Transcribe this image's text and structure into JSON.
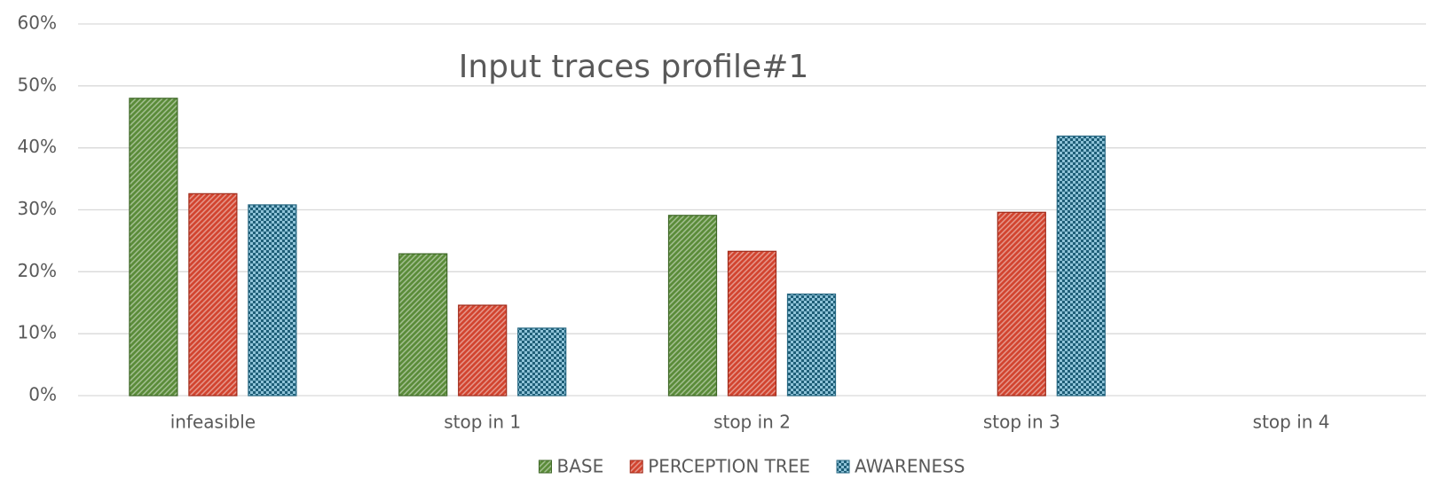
{
  "chart_data": {
    "type": "bar",
    "title": "Input traces profile#1",
    "categories": [
      "infeasible",
      "stop in 1",
      "stop in 2",
      "stop in 3",
      "stop in 4"
    ],
    "series": [
      {
        "name": "BASE",
        "color": "#5b8c3a",
        "values": [
          48,
          22.9,
          29.1,
          0,
          0
        ]
      },
      {
        "name": "PERCEPTION TREE",
        "color": "#d24530",
        "values": [
          32.6,
          14.6,
          23.3,
          29.6,
          0
        ]
      },
      {
        "name": "AWARENESS",
        "color": "#8fc3d8",
        "values": [
          30.8,
          10.9,
          16.4,
          41.9,
          0
        ]
      }
    ],
    "ylim": [
      0,
      60
    ],
    "yticks": [
      {
        "value": 0,
        "label": "0%"
      },
      {
        "value": 10,
        "label": "10%"
      },
      {
        "value": 20,
        "label": "20%"
      },
      {
        "value": 30,
        "label": "30%"
      },
      {
        "value": 40,
        "label": "40%"
      },
      {
        "value": 50,
        "label": "50%"
      },
      {
        "value": 60,
        "label": "60%"
      }
    ],
    "grid": true,
    "legend": "bottom"
  }
}
